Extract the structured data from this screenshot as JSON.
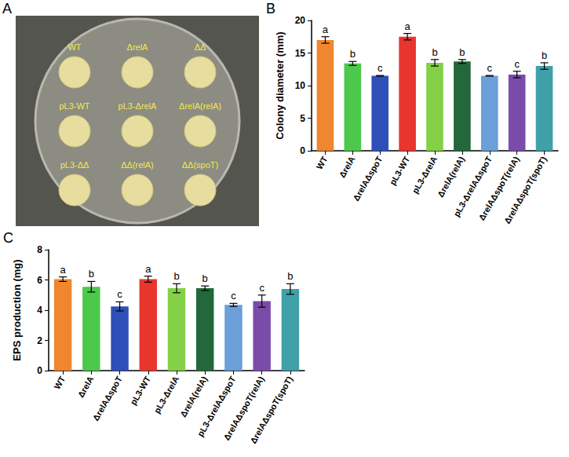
{
  "plate": {
    "panel": "A",
    "labels": [
      [
        "WT",
        "ΔrelA",
        "ΔΔ"
      ],
      [
        "pL3-WT",
        "pL3-ΔrelA",
        "ΔrelA(relA)"
      ],
      [
        "pL3-ΔΔ",
        "ΔΔ(relA)",
        "ΔΔ(spoT)"
      ]
    ]
  },
  "chart_data": [
    {
      "panel": "B",
      "type": "bar",
      "y_label": "Colony diameter (mm)",
      "categories": [
        "WT",
        "ΔrelA",
        "ΔrelAΔspoT",
        "pL3-WT",
        "pL3-ΔrelA",
        "ΔrelA(relA)",
        "pL3-ΔrelAΔspoT",
        "ΔrelAΔspoT(relA)",
        "ΔrelAΔspoT(spoT)"
      ],
      "values": [
        17.0,
        13.4,
        11.5,
        17.5,
        13.5,
        13.7,
        11.5,
        11.7,
        13.0
      ],
      "error": [
        0.5,
        0.3,
        0.05,
        0.5,
        0.5,
        0.3,
        0.05,
        0.5,
        0.5
      ],
      "annotations": [
        "a",
        "b",
        "c",
        "a",
        "b",
        "b",
        "c",
        "c",
        "b"
      ],
      "colors": [
        "#f0862f",
        "#4cc94a",
        "#2f4fb8",
        "#e8362f",
        "#84d046",
        "#23683a",
        "#6a9fd8",
        "#7b4baa",
        "#3fa0a8"
      ],
      "ylim": [
        0,
        20
      ],
      "yticks": [
        0,
        5,
        10,
        15,
        20
      ],
      "grid": false
    },
    {
      "panel": "C",
      "type": "bar",
      "y_label": "EPS production (mg)",
      "categories": [
        "WT",
        "ΔrelA",
        "ΔrelAΔspoT",
        "pL3-WT",
        "pL3-ΔrelA",
        "ΔrelA(relA)",
        "pL3-ΔrelAΔspoT",
        "ΔrelAΔspoT(relA)",
        "ΔrelAΔspoT(spoT)"
      ],
      "values": [
        6.05,
        5.55,
        4.25,
        6.05,
        5.45,
        5.45,
        4.35,
        4.6,
        5.4
      ],
      "error": [
        0.15,
        0.35,
        0.3,
        0.2,
        0.3,
        0.15,
        0.1,
        0.4,
        0.35
      ],
      "annotations": [
        "a",
        "b",
        "c",
        "a",
        "b",
        "b",
        "c",
        "c",
        "b"
      ],
      "colors": [
        "#f0862f",
        "#4cc94a",
        "#2f4fb8",
        "#e8362f",
        "#84d046",
        "#23683a",
        "#6a9fd8",
        "#7b4baa",
        "#3fa0a8"
      ],
      "ylim": [
        0,
        8
      ],
      "yticks": [
        0,
        2,
        4,
        6,
        8
      ],
      "grid": false
    }
  ]
}
